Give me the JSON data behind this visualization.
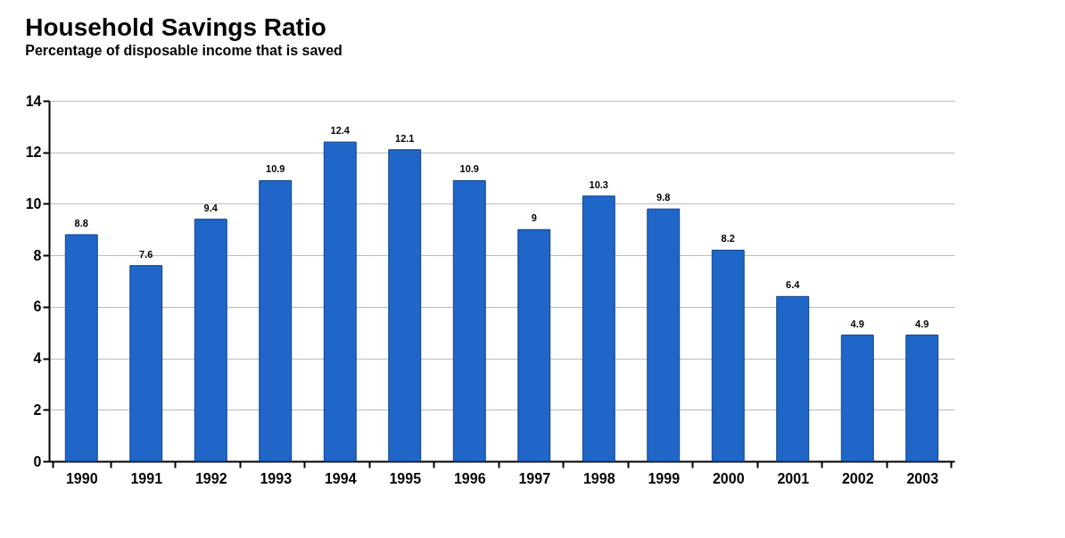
{
  "chart_data": {
    "type": "bar",
    "title": "Household Savings Ratio",
    "subtitle": "Percentage of disposable income that is saved",
    "categories": [
      "1990",
      "1991",
      "1992",
      "1993",
      "1994",
      "1995",
      "1996",
      "1997",
      "1998",
      "1999",
      "2000",
      "2001",
      "2002",
      "2003"
    ],
    "values": [
      8.8,
      7.6,
      9.4,
      10.9,
      12.4,
      12.1,
      10.9,
      9,
      10.3,
      9.8,
      8.2,
      6.4,
      4.9,
      4.9
    ],
    "color": "#1f66c8",
    "ylim": [
      0,
      14
    ],
    "yticks": [
      0,
      2,
      4,
      6,
      8,
      10,
      12,
      14
    ],
    "grid": "y",
    "data_labels": true
  }
}
